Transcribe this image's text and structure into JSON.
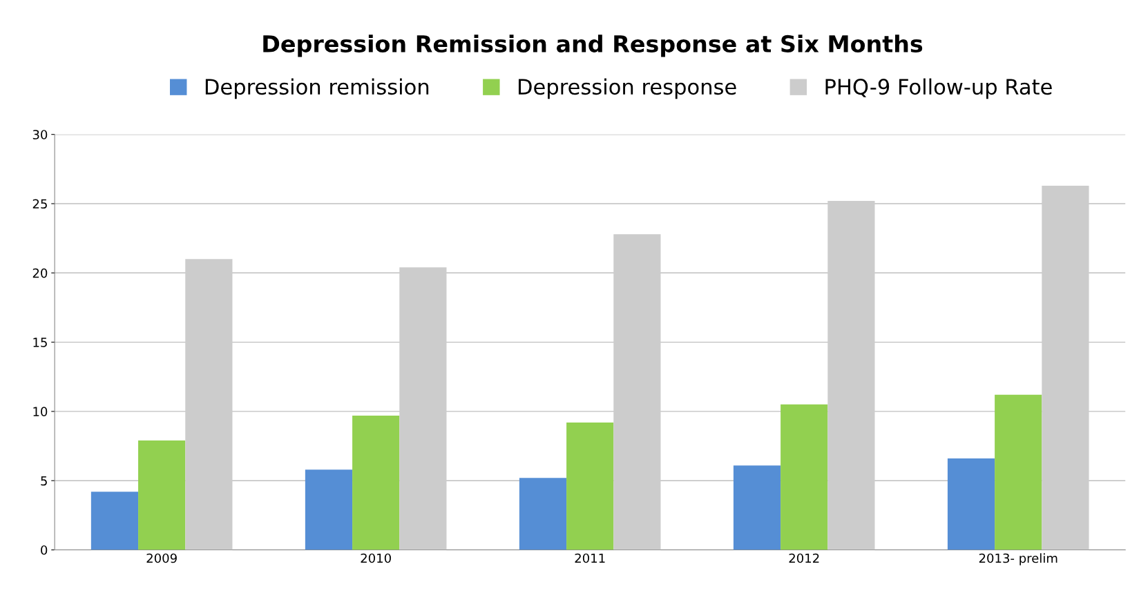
{
  "chart_data": {
    "type": "bar",
    "title": "Depression Remission and Response at Six Months",
    "categories": [
      "2009",
      "2010",
      "2011",
      "2012",
      "2013- prelim"
    ],
    "series": [
      {
        "name": "Depression remission",
        "color": "#558ed5",
        "values": [
          4.2,
          5.8,
          5.2,
          6.1,
          6.6
        ]
      },
      {
        "name": "Depression response",
        "color": "#92d050",
        "values": [
          7.9,
          9.7,
          9.2,
          10.5,
          11.2
        ]
      },
      {
        "name": "PHQ-9 Follow-up Rate",
        "color": "#cccccc",
        "values": [
          21.0,
          20.4,
          22.8,
          25.2,
          26.3
        ]
      }
    ],
    "ylim": [
      0,
      30
    ],
    "yticks": [
      0,
      5,
      10,
      15,
      20,
      25,
      30
    ],
    "grid": "y",
    "legend": "top"
  }
}
